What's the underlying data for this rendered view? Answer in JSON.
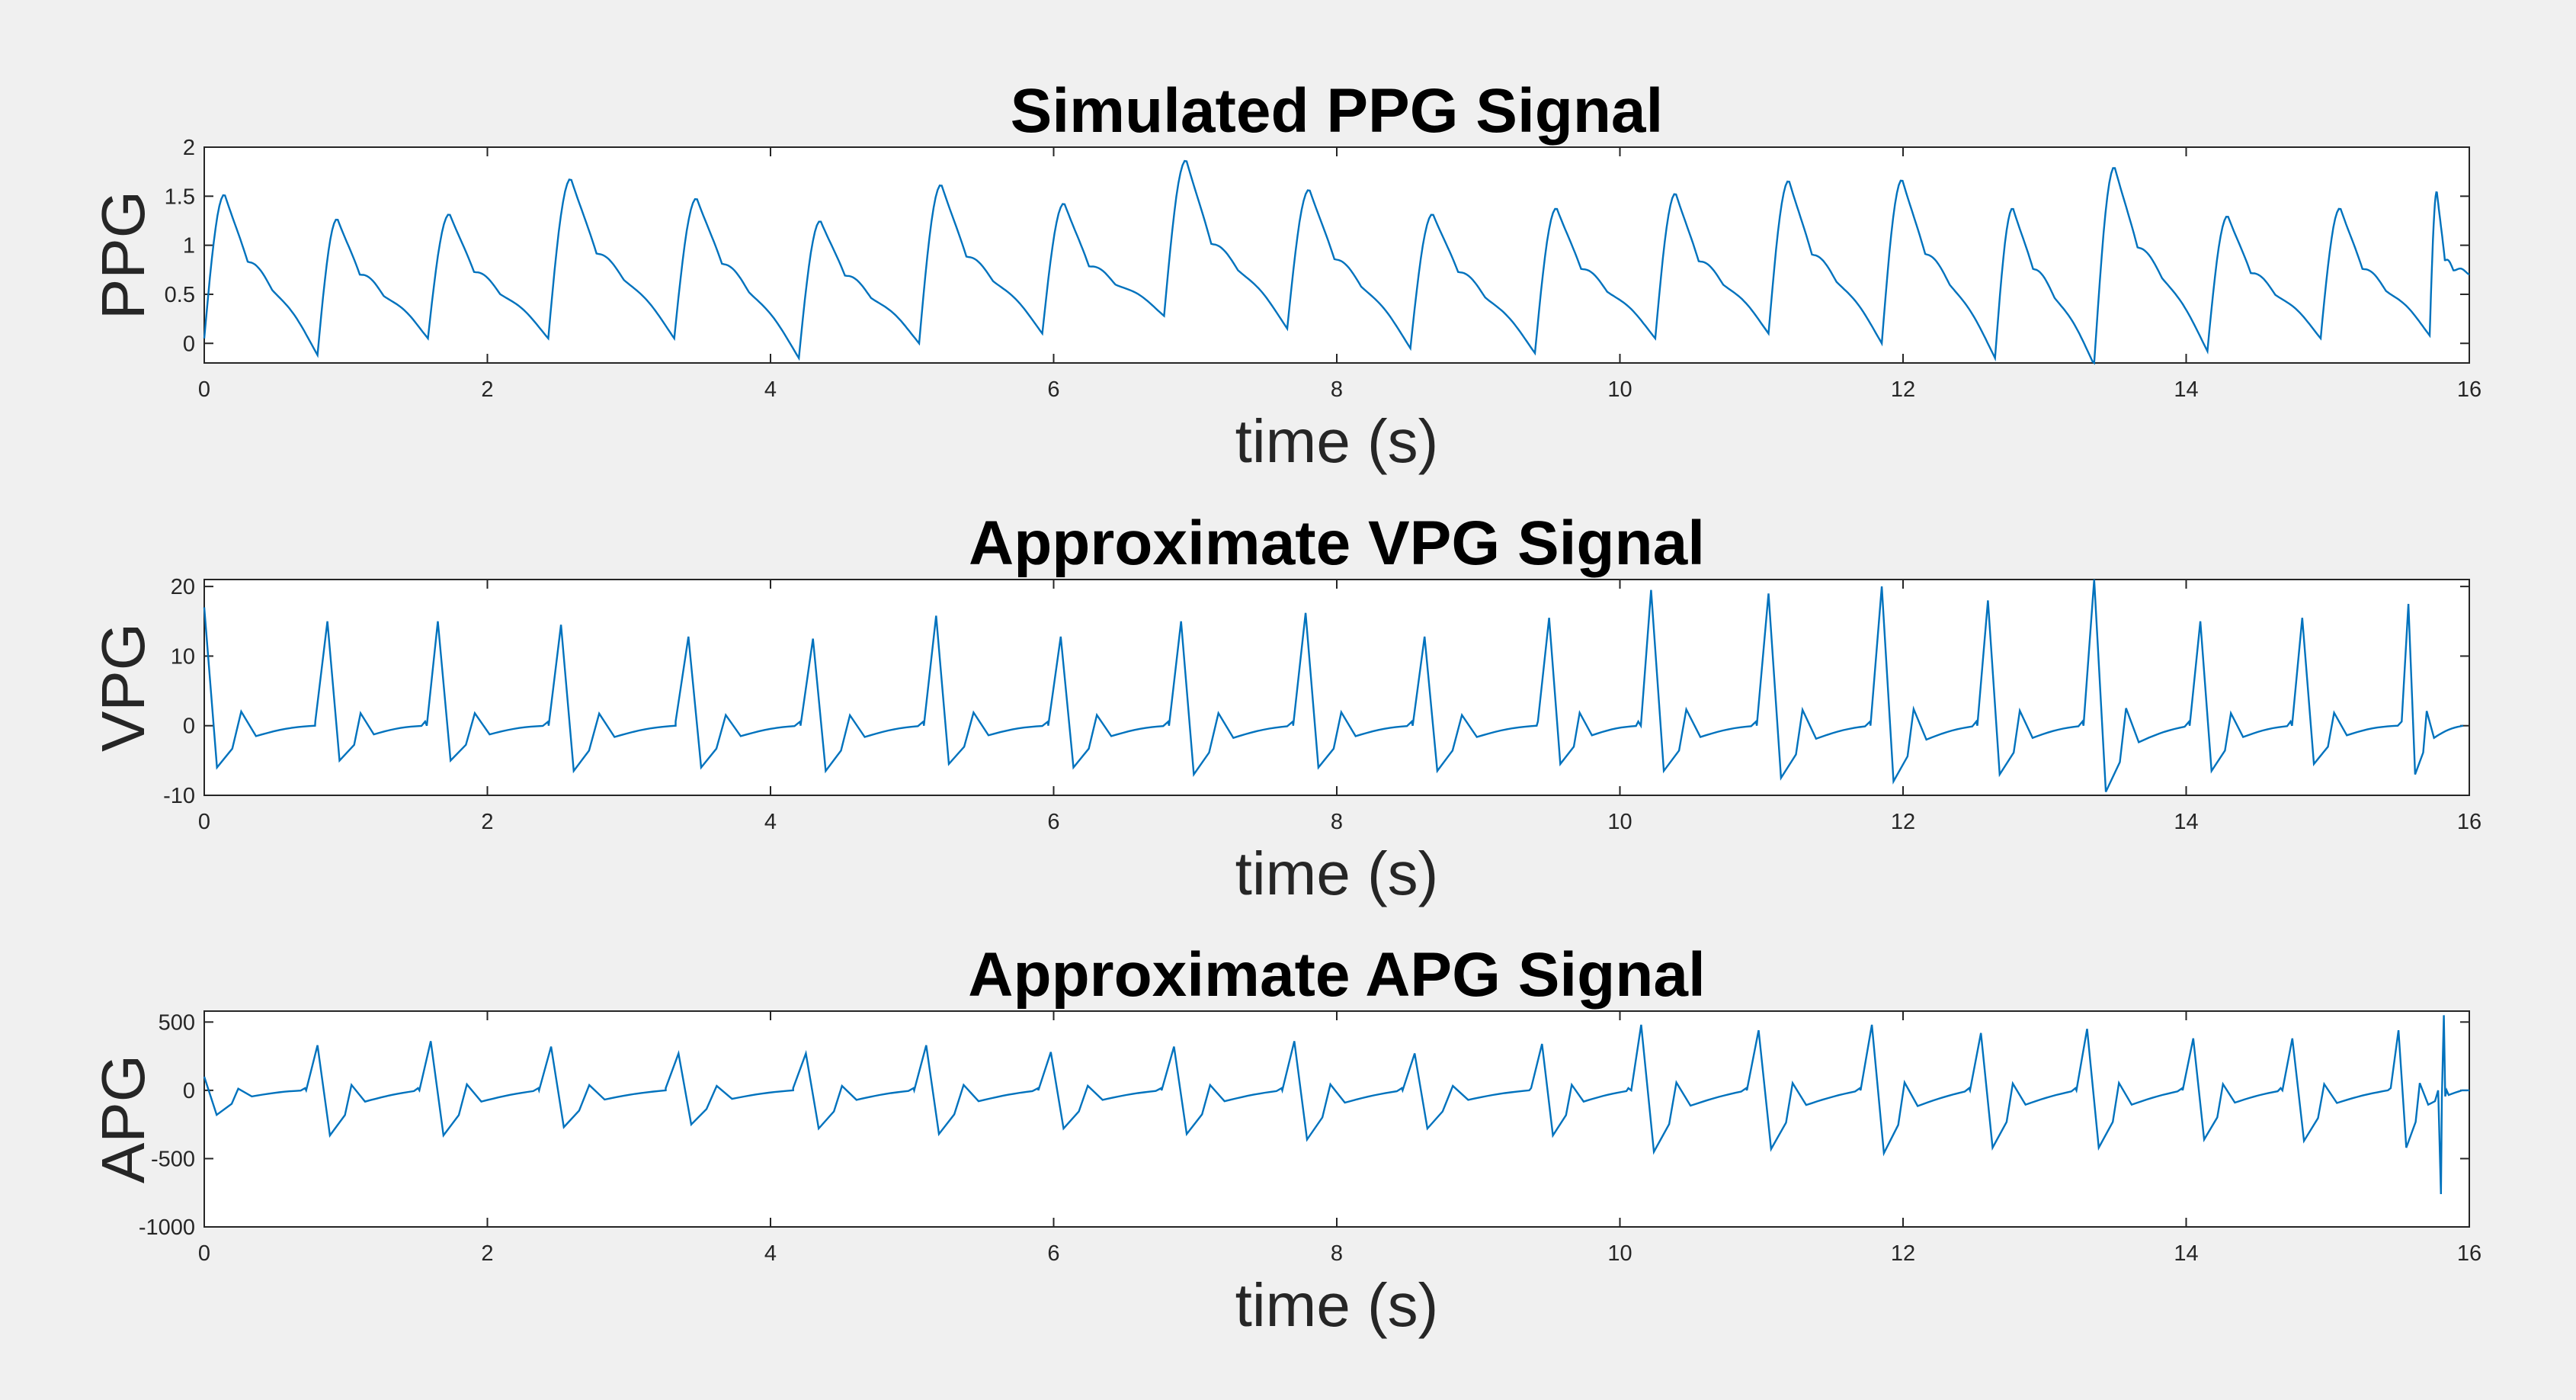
{
  "chart_data": [
    {
      "type": "line",
      "title": "Simulated PPG Signal",
      "xlabel": "time (s)",
      "ylabel": "PPG",
      "xlim": [
        0,
        16
      ],
      "ylim": [
        -0.2,
        2
      ],
      "xticks": [
        0,
        2,
        4,
        6,
        8,
        10,
        12,
        14,
        16
      ],
      "yticks": [
        0,
        0.5,
        1,
        1.5,
        2
      ],
      "ytick_labels": [
        "0",
        "0.5",
        "1",
        "1.5",
        "2"
      ],
      "line_color": "#0072bd",
      "kind": "ppg",
      "beats": [
        {
          "t": 0.0,
          "peak": 1.52,
          "trough": 0.05
        },
        {
          "t": 0.8,
          "peak": 1.27,
          "trough": -0.12
        },
        {
          "t": 1.58,
          "peak": 1.32,
          "trough": 0.05
        },
        {
          "t": 2.43,
          "peak": 1.68,
          "trough": 0.05
        },
        {
          "t": 3.32,
          "peak": 1.48,
          "trough": 0.05
        },
        {
          "t": 4.2,
          "peak": 1.25,
          "trough": -0.15
        },
        {
          "t": 5.05,
          "peak": 1.62,
          "trough": 0.0
        },
        {
          "t": 5.92,
          "peak": 1.43,
          "trough": 0.1
        },
        {
          "t": 6.78,
          "peak": 1.87,
          "trough": 0.28
        },
        {
          "t": 7.65,
          "peak": 1.57,
          "trough": 0.15
        },
        {
          "t": 8.52,
          "peak": 1.32,
          "trough": -0.05
        },
        {
          "t": 9.4,
          "peak": 1.38,
          "trough": -0.1
        },
        {
          "t": 10.25,
          "peak": 1.53,
          "trough": 0.05
        },
        {
          "t": 11.05,
          "peak": 1.66,
          "trough": 0.1
        },
        {
          "t": 11.85,
          "peak": 1.67,
          "trough": 0.0
        },
        {
          "t": 12.65,
          "peak": 1.38,
          "trough": -0.15
        },
        {
          "t": 13.35,
          "peak": 1.8,
          "trough": -0.22
        },
        {
          "t": 14.15,
          "peak": 1.3,
          "trough": -0.08
        },
        {
          "t": 14.95,
          "peak": 1.38,
          "trough": 0.05
        },
        {
          "t": 15.72,
          "peak": 1.55,
          "trough": 0.08
        }
      ],
      "end": {
        "t": 16.0,
        "y": 0.7
      }
    },
    {
      "type": "line",
      "title": "Approximate VPG Signal",
      "xlabel": "time (s)",
      "ylabel": "VPG",
      "xlim": [
        0,
        16
      ],
      "ylim": [
        -10,
        21
      ],
      "xticks": [
        0,
        2,
        4,
        6,
        8,
        10,
        12,
        14,
        16
      ],
      "yticks": [
        -10,
        0,
        10,
        20
      ],
      "ytick_labels": [
        "-10",
        "0",
        "10",
        "20"
      ],
      "line_color": "#0072bd",
      "kind": "vpg",
      "peaks": [
        {
          "t": 0.0,
          "peak": 17.0,
          "min": -6.0
        },
        {
          "t": 0.87,
          "peak": 15.0,
          "min": -5.0
        },
        {
          "t": 1.65,
          "peak": 15.0,
          "min": -5.0
        },
        {
          "t": 2.52,
          "peak": 14.5,
          "min": -6.5
        },
        {
          "t": 3.42,
          "peak": 12.8,
          "min": -6.0
        },
        {
          "t": 4.3,
          "peak": 12.5,
          "min": -6.5
        },
        {
          "t": 5.17,
          "peak": 15.8,
          "min": -5.5
        },
        {
          "t": 6.05,
          "peak": 12.8,
          "min": -6.0
        },
        {
          "t": 6.9,
          "peak": 15.0,
          "min": -7.0
        },
        {
          "t": 7.78,
          "peak": 16.2,
          "min": -6.0
        },
        {
          "t": 8.62,
          "peak": 12.8,
          "min": -6.5
        },
        {
          "t": 9.5,
          "peak": 15.5,
          "min": -5.5
        },
        {
          "t": 10.22,
          "peak": 19.5,
          "min": -6.5
        },
        {
          "t": 11.05,
          "peak": 19.0,
          "min": -7.5
        },
        {
          "t": 11.85,
          "peak": 20.0,
          "min": -8.0
        },
        {
          "t": 12.6,
          "peak": 18.0,
          "min": -7.0
        },
        {
          "t": 13.35,
          "peak": 21.0,
          "min": -9.5
        },
        {
          "t": 14.1,
          "peak": 15.0,
          "min": -6.5
        },
        {
          "t": 14.82,
          "peak": 15.5,
          "min": -5.5
        },
        {
          "t": 15.57,
          "peak": 17.5,
          "min": -7.0
        }
      ],
      "end": {
        "t": 16.0,
        "y": 0.0
      }
    },
    {
      "type": "line",
      "title": "Approximate APG Signal",
      "xlabel": "time (s)",
      "ylabel": "APG",
      "xlim": [
        0,
        16
      ],
      "ylim": [
        -1000,
        580
      ],
      "xticks": [
        0,
        2,
        4,
        6,
        8,
        10,
        12,
        14,
        16
      ],
      "yticks": [
        -1000,
        -500,
        0,
        500
      ],
      "ytick_labels": [
        "-1000",
        "-500",
        "0",
        "500"
      ],
      "line_color": "#0072bd",
      "kind": "apg",
      "peaks": [
        {
          "t": 0.0,
          "peak": 100,
          "min": -180
        },
        {
          "t": 0.8,
          "peak": 330,
          "min": -330
        },
        {
          "t": 1.6,
          "peak": 360,
          "min": -330
        },
        {
          "t": 2.45,
          "peak": 320,
          "min": -270
        },
        {
          "t": 3.35,
          "peak": 270,
          "min": -250
        },
        {
          "t": 4.25,
          "peak": 270,
          "min": -280
        },
        {
          "t": 5.1,
          "peak": 330,
          "min": -320
        },
        {
          "t": 5.98,
          "peak": 280,
          "min": -280
        },
        {
          "t": 6.85,
          "peak": 320,
          "min": -320
        },
        {
          "t": 7.7,
          "peak": 360,
          "min": -360
        },
        {
          "t": 8.55,
          "peak": 270,
          "min": -280
        },
        {
          "t": 9.45,
          "peak": 340,
          "min": -330
        },
        {
          "t": 10.15,
          "peak": 480,
          "min": -450
        },
        {
          "t": 10.98,
          "peak": 440,
          "min": -430
        },
        {
          "t": 11.78,
          "peak": 480,
          "min": -460
        },
        {
          "t": 12.55,
          "peak": 420,
          "min": -420
        },
        {
          "t": 13.3,
          "peak": 450,
          "min": -420
        },
        {
          "t": 14.05,
          "peak": 380,
          "min": -360
        },
        {
          "t": 14.75,
          "peak": 380,
          "min": -370
        },
        {
          "t": 15.5,
          "peak": 440,
          "min": -420
        }
      ],
      "spike": {
        "t": 15.8,
        "high": 550,
        "low": -760
      },
      "end": {
        "t": 16.0,
        "y": 0
      }
    }
  ]
}
